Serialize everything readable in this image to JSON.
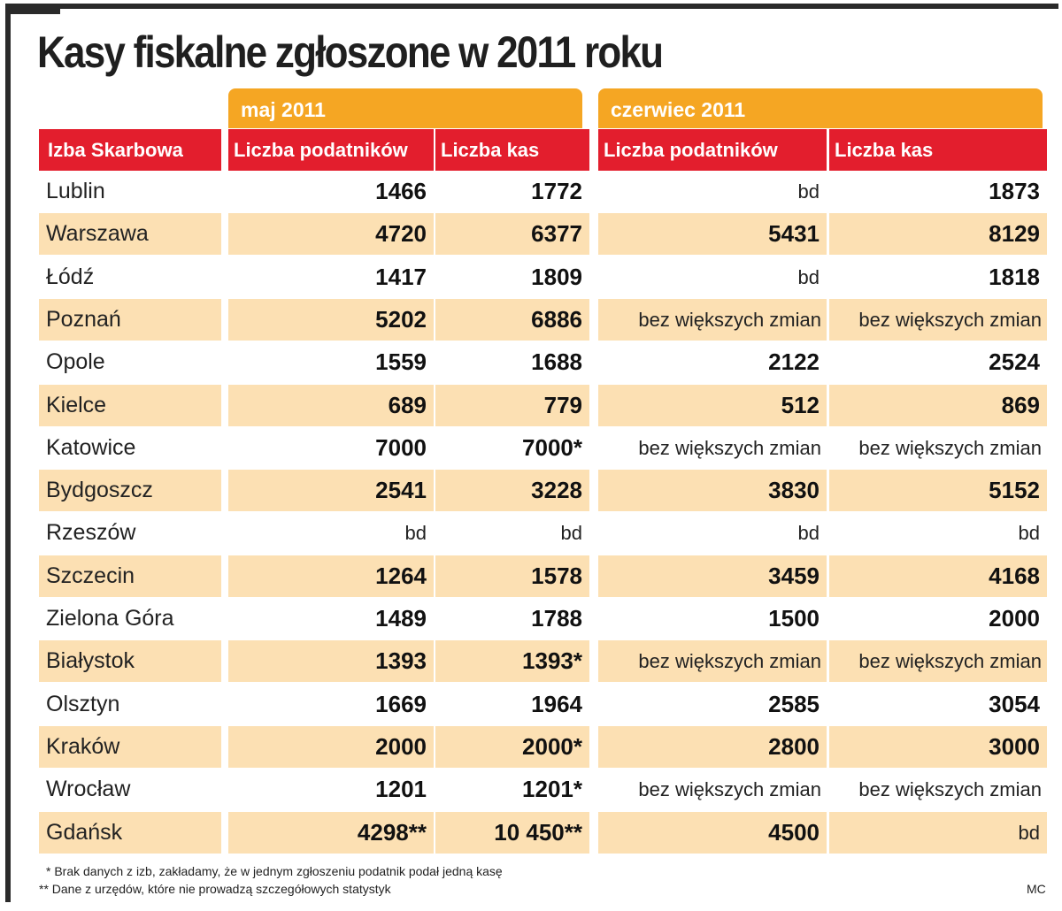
{
  "title": "Kasy fiskalne zgłoszone w 2011 roku",
  "groups": [
    "maj 2011",
    "czerwiec 2011"
  ],
  "headers": [
    "Izba Skarbowa",
    "Liczba podatników",
    "Liczba kas",
    "Liczba podatników",
    "Liczba kas"
  ],
  "rows": [
    [
      "Lublin",
      "1466",
      "1772",
      "bd",
      "1873"
    ],
    [
      "Warszawa",
      "4720",
      "6377",
      "5431",
      "8129"
    ],
    [
      "Łódź",
      "1417",
      "1809",
      "bd",
      "1818"
    ],
    [
      "Poznań",
      "5202",
      "6886",
      "bez większych zmian",
      "bez większych zmian"
    ],
    [
      "Opole",
      "1559",
      "1688",
      "2122",
      "2524"
    ],
    [
      "Kielce",
      "689",
      "779",
      "512",
      "869"
    ],
    [
      "Katowice",
      "7000",
      "7000*",
      "bez większych zmian",
      "bez większych zmian"
    ],
    [
      "Bydgoszcz",
      "2541",
      "3228",
      "3830",
      "5152"
    ],
    [
      "Rzeszów",
      "bd",
      "bd",
      "bd",
      "bd"
    ],
    [
      "Szczecin",
      "1264",
      "1578",
      "3459",
      "4168"
    ],
    [
      "Zielona Góra",
      "1489",
      "1788",
      "1500",
      "2000"
    ],
    [
      "Białystok",
      "1393",
      "1393*",
      "bez większych zmian",
      "bez większych zmian"
    ],
    [
      "Olsztyn",
      "1669",
      "1964",
      "2585",
      "3054"
    ],
    [
      "Kraków",
      "2000",
      "2000*",
      "2800",
      "3000"
    ],
    [
      "Wrocław",
      "1201",
      "1201*",
      "bez większych zmian",
      "bez większych zmian"
    ],
    [
      "Gdańsk",
      "4298**",
      "10 450**",
      "4500",
      "bd"
    ]
  ],
  "footnotes": [
    "* Brak danych z izb, zakładamy, że w jednym zgłoszeniu podatnik podał jedną kasę",
    "** Dane z urzędów, które nie prowadzą szczegółowych statystyk"
  ],
  "credit": "MC",
  "colors": {
    "accent_orange": "#f5a623",
    "header_red": "#e31e2d",
    "stripe": "#fce0b3",
    "frame": "#2a2a2a"
  }
}
